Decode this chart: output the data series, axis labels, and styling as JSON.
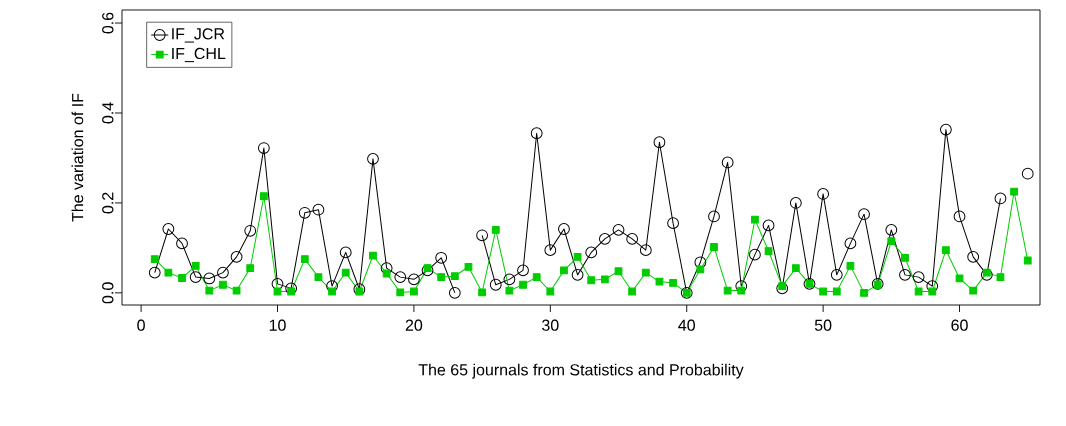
{
  "chart_data": {
    "type": "line",
    "xlabel": "The 65 journals from Statistics and Probability",
    "ylabel": "The variation of IF",
    "x": [
      1,
      2,
      3,
      4,
      5,
      6,
      7,
      8,
      9,
      10,
      11,
      12,
      13,
      14,
      15,
      16,
      17,
      18,
      19,
      20,
      21,
      22,
      23,
      24,
      25,
      26,
      27,
      28,
      29,
      30,
      31,
      32,
      33,
      34,
      35,
      36,
      37,
      38,
      39,
      40,
      41,
      42,
      43,
      44,
      45,
      46,
      47,
      48,
      49,
      50,
      51,
      52,
      53,
      54,
      55,
      56,
      57,
      58,
      59,
      60,
      61,
      62,
      63,
      64,
      65
    ],
    "series": [
      {
        "name": "IF_JCR",
        "color": "#000000",
        "marker": "circle",
        "values": [
          0.045,
          0.142,
          0.11,
          0.035,
          0.032,
          0.045,
          0.08,
          0.138,
          0.322,
          0.02,
          0.01,
          0.178,
          0.185,
          0.015,
          0.09,
          0.008,
          0.298,
          0.055,
          0.035,
          0.03,
          0.05,
          0.078,
          0.0,
          null,
          0.128,
          0.018,
          0.03,
          0.05,
          0.355,
          0.095,
          0.142,
          0.04,
          0.09,
          0.12,
          0.14,
          0.12,
          0.095,
          0.335,
          0.155,
          0.0,
          0.068,
          0.17,
          0.29,
          0.015,
          0.085,
          0.15,
          0.01,
          0.2,
          0.02,
          0.22,
          0.04,
          0.11,
          0.175,
          0.02,
          0.14,
          0.04,
          0.035,
          0.015,
          0.363,
          0.17,
          0.08,
          0.04,
          0.21,
          null,
          0.265
        ]
      },
      {
        "name": "IF_CHL",
        "color": "#00cc00",
        "marker": "square",
        "values": [
          0.075,
          0.045,
          0.033,
          0.06,
          0.005,
          0.018,
          0.005,
          0.055,
          0.215,
          0.003,
          0.003,
          0.075,
          0.035,
          0.003,
          0.045,
          0.003,
          0.083,
          0.043,
          0.001,
          0.003,
          0.055,
          0.035,
          0.037,
          0.058,
          0.001,
          0.14,
          0.005,
          0.018,
          0.035,
          0.003,
          0.05,
          0.08,
          0.028,
          0.03,
          0.048,
          0.003,
          0.045,
          0.025,
          0.022,
          0.0,
          0.052,
          0.102,
          0.005,
          0.005,
          0.163,
          0.093,
          0.015,
          0.055,
          0.02,
          0.003,
          0.003,
          0.06,
          0.0,
          0.018,
          0.115,
          0.078,
          0.003,
          0.003,
          0.095,
          0.032,
          0.005,
          0.045,
          0.035,
          0.225,
          0.072
        ]
      }
    ],
    "xlim": [
      -1.4,
      65.9
    ],
    "ylim": [
      -0.027,
      0.629
    ],
    "xticks": [
      0,
      10,
      20,
      30,
      40,
      50,
      60
    ],
    "yticks": [
      {
        "value": 0,
        "label": "0.0"
      },
      {
        "value": 0.2,
        "label": "0.2"
      },
      {
        "value": 0.4,
        "label": "0.4"
      },
      {
        "value": 0.6,
        "label": "0.6"
      }
    ],
    "legend": "top left",
    "grid": false,
    "line_style": "solid"
  }
}
